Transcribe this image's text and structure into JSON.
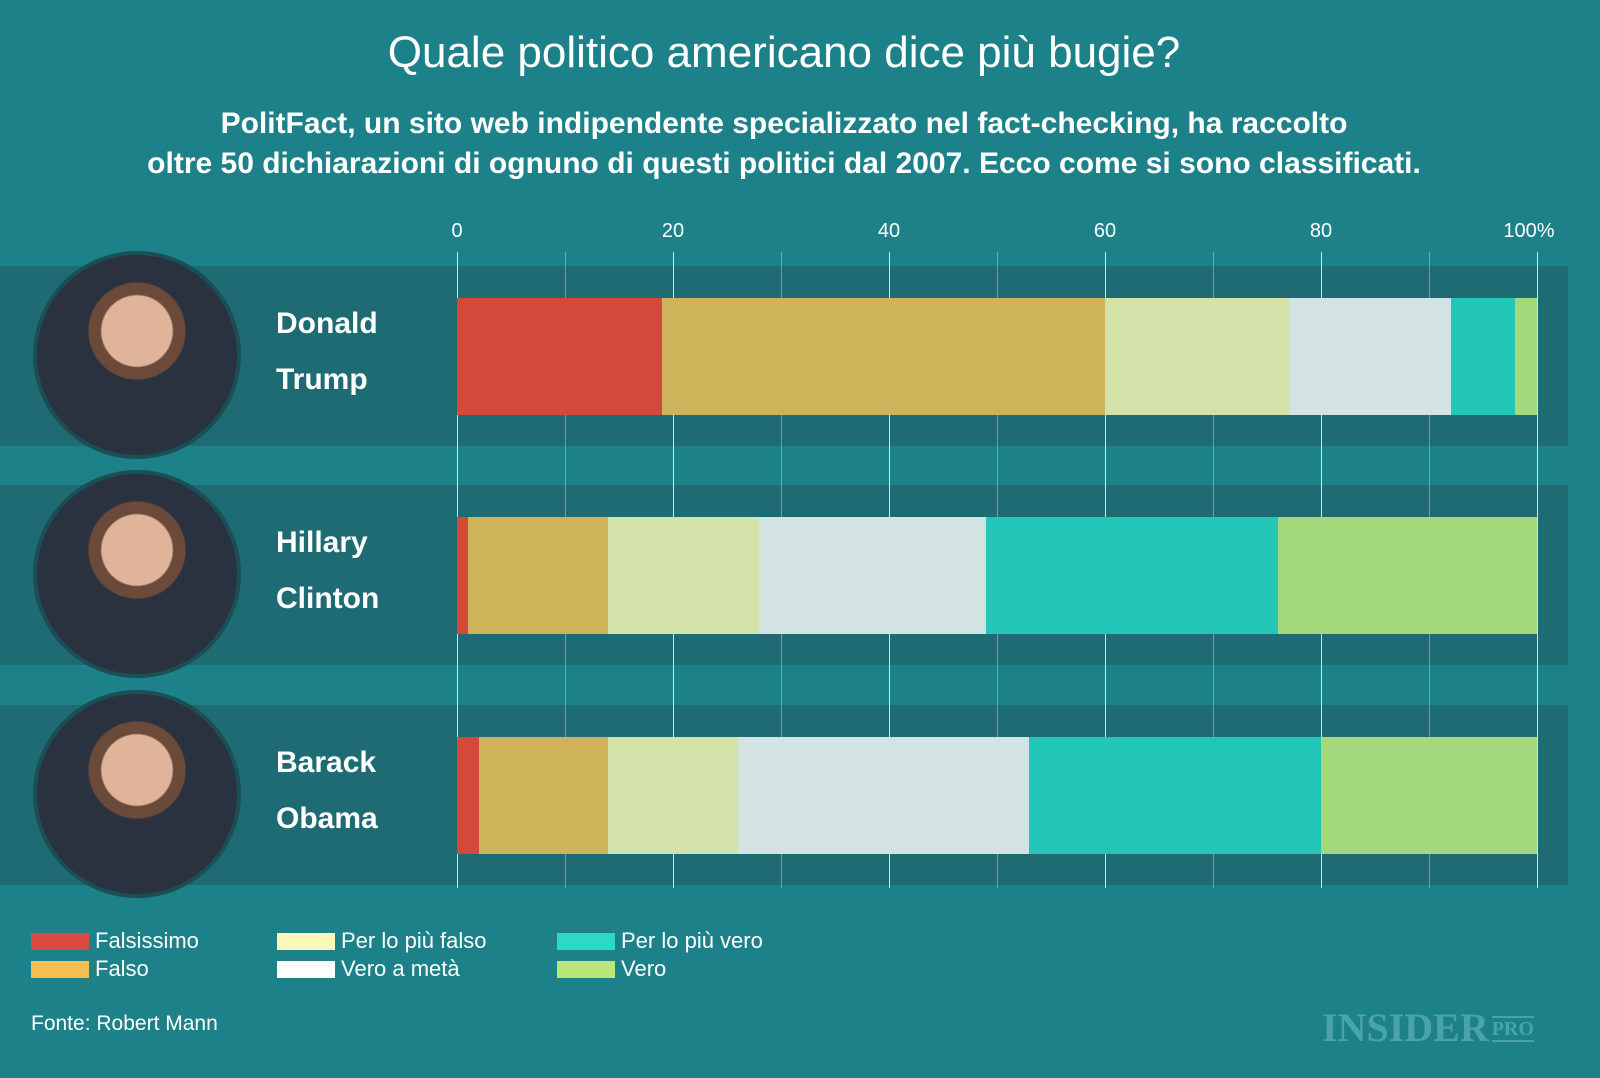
{
  "chart_data": {
    "type": "bar",
    "orientation": "horizontal",
    "stacked": true,
    "title": "Quale politico americano dice più bugie?",
    "subtitle": [
      "PolitFact, un sito web indipendente specializzato nel fact-checking, ha raccolto",
      "oltre 50 dichiarazioni di ognuno di questi politici dal 2007. Ecco come si sono classificati."
    ],
    "xlim": [
      0,
      100
    ],
    "ticks": [
      "0",
      "20",
      "40",
      "60",
      "80",
      "100%"
    ],
    "categories": [
      [
        "Donald",
        "Trump"
      ],
      [
        "Hillary",
        "Clinton"
      ],
      [
        "Barack",
        "Obama"
      ]
    ],
    "series": [
      {
        "name": "Falsissimo",
        "color": "#d4493b",
        "values": [
          19,
          1,
          2
        ]
      },
      {
        "name": "Falso",
        "color": "#cfb35a",
        "values": [
          41,
          13,
          12
        ]
      },
      {
        "name": "Per lo più falso",
        "color": "#d3e2a8",
        "values": [
          17,
          14,
          12
        ]
      },
      {
        "name": "Vero a metà",
        "color": "#d3e2e2",
        "values": [
          15,
          21,
          27
        ]
      },
      {
        "name": "Per lo più vero",
        "color": "#22c7b8",
        "values": [
          6,
          27,
          27
        ]
      },
      {
        "name": "Vero",
        "color": "#a4d87d",
        "values": [
          2,
          24,
          20
        ]
      }
    ],
    "legend_colors": [
      "#d94a3c",
      "#f5c04f",
      "#fdf7b8",
      "#ffffff",
      "#2dd9c6",
      "#b9e67b"
    ],
    "legend": "bottom-left"
  },
  "source": "Fonte: Robert Mann",
  "logo": {
    "main": "INSIDER",
    "sup": "PRO"
  }
}
